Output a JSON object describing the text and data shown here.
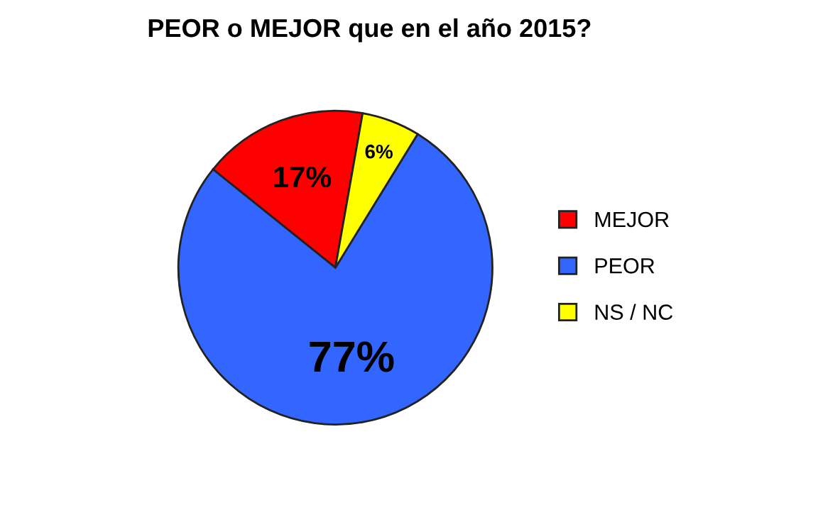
{
  "chart_data": {
    "type": "pie",
    "title": "PEOR o MEJOR que en el año 2015?",
    "categories": [
      "MEJOR",
      "PEOR",
      "NS / NC"
    ],
    "values": [
      17,
      77,
      6
    ],
    "colors": [
      "#ff0000",
      "#3366ff",
      "#ffff00"
    ],
    "value_labels": [
      "17%",
      "77%",
      "6%"
    ],
    "legend": "right"
  }
}
